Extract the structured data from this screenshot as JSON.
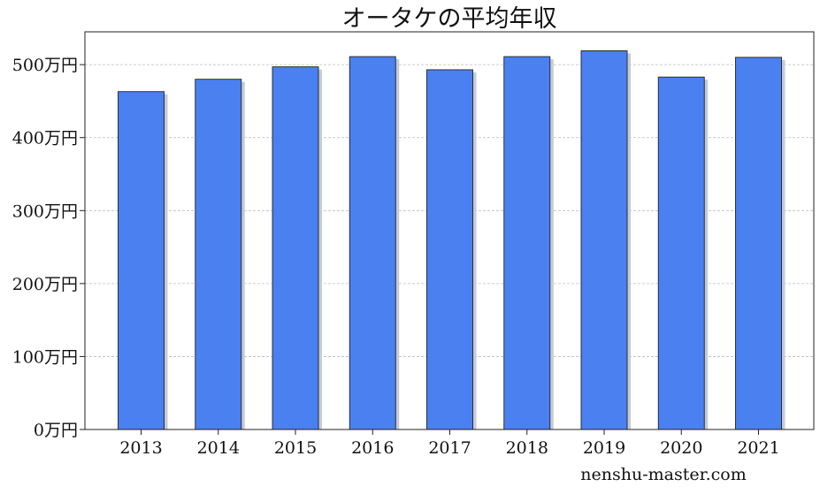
{
  "chart_data": {
    "type": "bar",
    "title": "オータケの平均年収",
    "categories": [
      "2013",
      "2014",
      "2015",
      "2016",
      "2017",
      "2018",
      "2019",
      "2020",
      "2021"
    ],
    "series": [
      {
        "values": [
          463,
          480,
          497,
          511,
          493,
          511,
          519,
          483,
          510
        ]
      }
    ],
    "y_unit_suffix": "万円",
    "ylim": [
      0,
      545
    ],
    "yticks": [
      0,
      100,
      200,
      300,
      400,
      500
    ],
    "ytick_labels": [
      "0万円",
      "100万円",
      "200万円",
      "300万円",
      "400万円",
      "500万円"
    ],
    "grid": "horizontal-dashed",
    "legend": "none",
    "colors": {
      "bar_fill": "#4a80f0",
      "bar_edge": "#222222",
      "bar_shadow": "#c5cad8",
      "grid": "#bbbbbb"
    }
  },
  "watermark": "nenshu-master.com"
}
